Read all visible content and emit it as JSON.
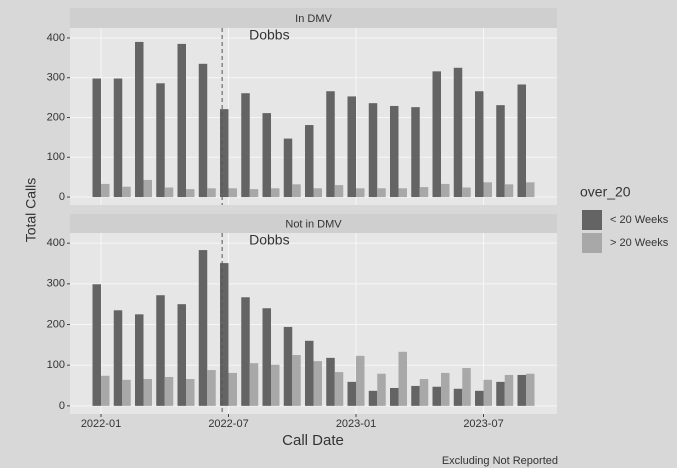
{
  "y_label": "Total Calls",
  "x_label": "Call Date",
  "legend_title": "over_20",
  "caption": "Excluding Not Reported",
  "chart_data": [
    {
      "type": "bar",
      "title": "In DMV",
      "categories": [
        "2022-01",
        null,
        null,
        null,
        null,
        null,
        "2022-07",
        null,
        null,
        null,
        null,
        null,
        "2023-01",
        null,
        null,
        null,
        null,
        null,
        "2023-07",
        null,
        null
      ],
      "series": [
        {
          "name": "< 20 Weeks",
          "color": "#646464",
          "values": [
            298,
            298,
            390,
            286,
            385,
            335,
            221,
            261,
            211,
            147,
            181,
            266,
            253,
            236,
            229,
            226,
            316,
            325,
            266,
            231,
            283
          ]
        },
        {
          "name": "> 20 Weeks",
          "color": "#a8a8a8",
          "values": [
            33,
            26,
            43,
            24,
            20,
            22,
            22,
            20,
            22,
            32,
            22,
            30,
            22,
            22,
            22,
            25,
            33,
            24,
            37,
            32,
            37
          ]
        }
      ],
      "ylim": [
        -20,
        425
      ],
      "yticks": [
        0,
        100,
        200,
        300,
        400
      ],
      "grid": true,
      "annotation": {
        "text": "Dobbs",
        "x": 5.7
      }
    },
    {
      "type": "bar",
      "title": "Not in DMV",
      "categories": [
        "2022-01",
        null,
        null,
        null,
        null,
        null,
        "2022-07",
        null,
        null,
        null,
        null,
        null,
        "2023-01",
        null,
        null,
        null,
        null,
        null,
        "2023-07",
        null,
        null
      ],
      "series": [
        {
          "name": "< 20 Weeks",
          "color": "#646464",
          "values": [
            299,
            235,
            225,
            272,
            250,
            383,
            351,
            267,
            240,
            194,
            160,
            118,
            59,
            37,
            44,
            49,
            47,
            42,
            37,
            59,
            76
          ]
        },
        {
          "name": "> 20 Weeks",
          "color": "#a8a8a8",
          "values": [
            74,
            64,
            66,
            71,
            66,
            88,
            81,
            105,
            101,
            125,
            110,
            83,
            123,
            79,
            133,
            66,
            81,
            93,
            64,
            76,
            79
          ]
        }
      ],
      "ylim": [
        -20,
        425
      ],
      "yticks": [
        0,
        100,
        200,
        300,
        400
      ],
      "grid": true,
      "annotation": {
        "text": "Dobbs",
        "x": 5.7
      }
    }
  ]
}
